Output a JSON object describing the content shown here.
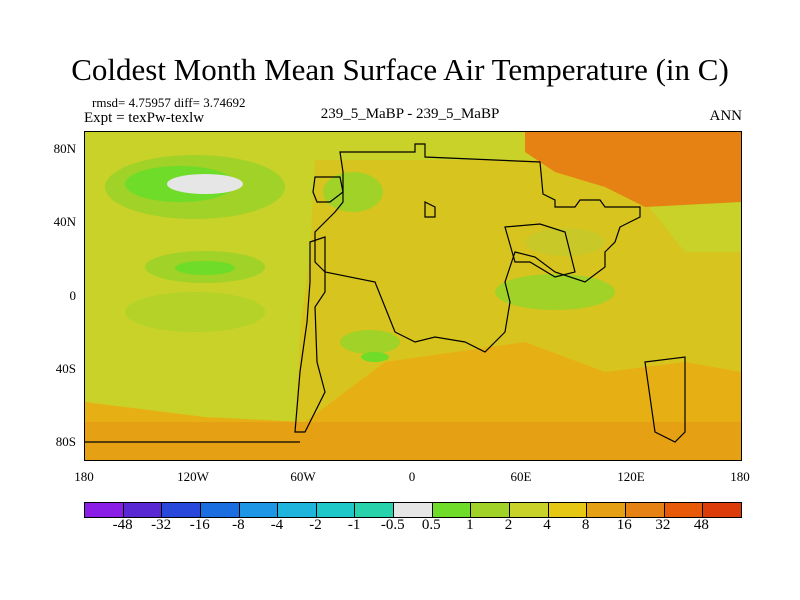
{
  "title": "Coldest Month Mean Surface Air Temperature (in C)",
  "stats": "rmsd= 4.75957 diff= 3.74692",
  "expt": "Expt = texPw-texlw",
  "case_id": "239_5_MaBP - 239_5_MaBP",
  "season": "ANN",
  "map": {
    "lat_labels": [
      "80N",
      "40N",
      "0",
      "40S",
      "80S"
    ],
    "lon_labels": [
      "180",
      "120W",
      "60W",
      "0",
      "60E",
      "120E",
      "180"
    ]
  },
  "colorbar": {
    "labels": [
      "-48",
      "-32",
      "-16",
      "-8",
      "-4",
      "-2",
      "-1",
      "-0.5",
      "0.5",
      "1",
      "2",
      "4",
      "8",
      "16",
      "32",
      "48"
    ],
    "colors": [
      "#8a1ee6",
      "#5a28d2",
      "#2848dc",
      "#1a6ee0",
      "#1e96e6",
      "#1eb4dc",
      "#1ec8c8",
      "#28d2aa",
      "#e6e6e6",
      "#6edc28",
      "#a0d228",
      "#c8d228",
      "#e6c814",
      "#e6a014",
      "#e68214",
      "#e65a0a",
      "#dc3c0a"
    ]
  }
}
